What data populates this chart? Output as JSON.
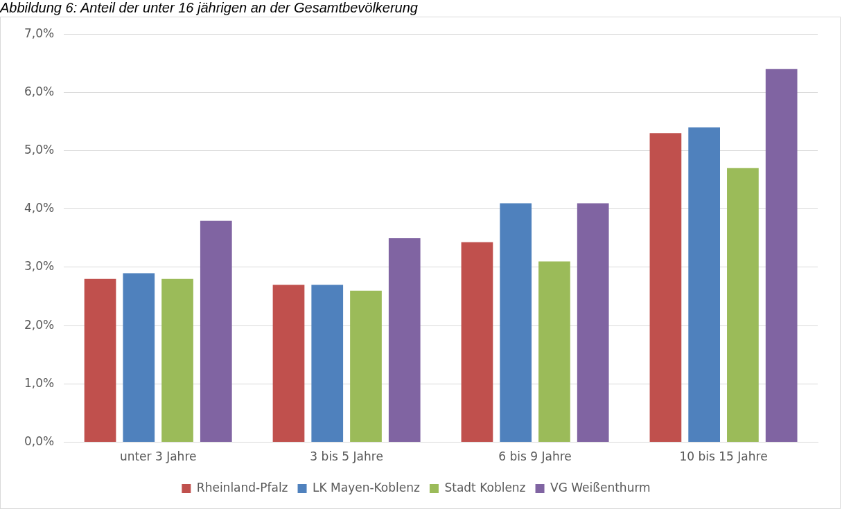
{
  "chart_data": {
    "type": "bar",
    "title": "Abbildung 6:  Anteil der unter 16 jährigen an der Gesamtbevölkerung",
    "categories": [
      "unter 3 Jahre",
      "3 bis 5 Jahre",
      "6 bis 9 Jahre",
      "10 bis 15 Jahre"
    ],
    "series": [
      {
        "name": "Rheinland-Pfalz",
        "color": "#c0504d",
        "values": [
          2.8,
          2.7,
          3.43,
          5.3
        ]
      },
      {
        "name": "LK Mayen-Koblenz",
        "color": "#4f81bd",
        "values": [
          2.9,
          2.7,
          4.1,
          5.4
        ]
      },
      {
        "name": "Stadt Koblenz",
        "color": "#9bbb59",
        "values": [
          2.8,
          2.6,
          3.1,
          4.7
        ]
      },
      {
        "name": "VG Weißenthurm",
        "color": "#8064a2",
        "values": [
          3.8,
          3.5,
          4.1,
          6.4
        ]
      }
    ],
    "ylim": [
      0,
      7
    ],
    "yticks": [
      {
        "value": 0,
        "label": "0,0%"
      },
      {
        "value": 1,
        "label": "1,0%"
      },
      {
        "value": 2,
        "label": "2,0%"
      },
      {
        "value": 3,
        "label": "3,0%"
      },
      {
        "value": 4,
        "label": "4,0%"
      },
      {
        "value": 5,
        "label": "5,0%"
      },
      {
        "value": 6,
        "label": "6,0%"
      },
      {
        "value": 7,
        "label": "7,0%"
      }
    ],
    "grid": "y",
    "legend": "bottom"
  }
}
